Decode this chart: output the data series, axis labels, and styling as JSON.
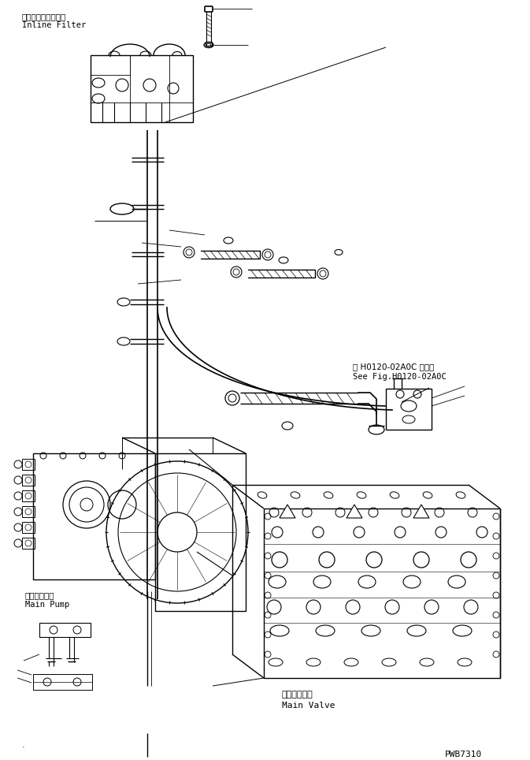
{
  "bg_color": "#ffffff",
  "line_color": "#000000",
  "lw": 0.7,
  "label_inline_filter_ja": "インラインフィルタ",
  "label_inline_filter_en": "Inline Filter",
  "label_main_pump_ja": "メインポンプ",
  "label_main_pump_en": "Main Pump",
  "label_main_valve_ja": "メインバルブ",
  "label_main_valve_en": "Main Valve",
  "label_see_fig": "第 H0120-02A0C 図参照",
  "label_see_fig2": "See Fig.H0120-02A0C",
  "label_pwb": "PWB7310",
  "figsize": [
    6.73,
    9.64
  ],
  "dpi": 100,
  "fig_w": 673,
  "fig_h": 964
}
